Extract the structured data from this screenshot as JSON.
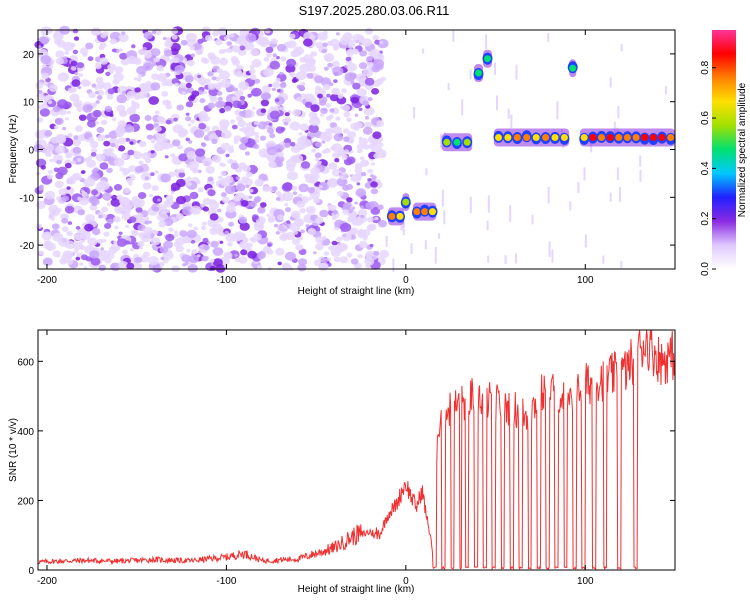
{
  "title": "S197.2025.280.03.06.R11",
  "chart_data": [
    {
      "type": "heatmap",
      "name": "spectrogram",
      "xlabel": "Height of straight line (km)",
      "ylabel": "Frequency (Hz)",
      "xlim": [
        -205,
        150
      ],
      "ylim": [
        -25,
        25
      ],
      "xticks": [
        -200,
        -100,
        0,
        100
      ],
      "xtick_labels": [
        "-200",
        "-100",
        "0",
        "100"
      ],
      "yticks": [
        -20,
        -10,
        0,
        10,
        20
      ],
      "ytick_labels": [
        "-20",
        "-10",
        "0",
        "10",
        "20"
      ],
      "colorbar": {
        "label": "Normalized spectral amplitude",
        "range": [
          0.0,
          0.95
        ],
        "ticks": [
          0.0,
          0.2,
          0.4,
          0.6,
          0.8
        ],
        "tick_labels": [
          "0.0",
          "0.2",
          "0.4",
          "0.6",
          "0.8"
        ],
        "colors": [
          "#ffffff",
          "#e0c8ff",
          "#8a2be2",
          "#2020ff",
          "#00c8ff",
          "#00e070",
          "#a0e000",
          "#ffe000",
          "#ff8000",
          "#ff0000",
          "#ff3399"
        ]
      },
      "noise_region_x": [
        -205,
        -12
      ],
      "features": [
        {
          "x0": -10,
          "x1": -1,
          "freq": -14,
          "amplitude": 0.85
        },
        {
          "x0": -2,
          "x1": 2,
          "freq": -11,
          "amplitude": 0.6
        },
        {
          "x0": 4,
          "x1": 17,
          "freq": -13,
          "amplitude": 0.8
        },
        {
          "x0": 20,
          "x1": 37,
          "freq": 1.5,
          "amplitude": 0.6
        },
        {
          "x0": 38,
          "x1": 43,
          "freq": 16,
          "amplitude": 0.6
        },
        {
          "x0": 43,
          "x1": 48,
          "freq": 19,
          "amplitude": 0.55
        },
        {
          "x0": 49,
          "x1": 91,
          "freq": 2.5,
          "amplitude": 0.75
        },
        {
          "x0": 91,
          "x1": 95,
          "freq": 17,
          "amplitude": 0.5
        },
        {
          "x0": 97,
          "x1": 150,
          "freq": 2.5,
          "amplitude": 0.85
        }
      ]
    },
    {
      "type": "line",
      "name": "snr",
      "xlabel": "Height of straight line (km)",
      "ylabel": "SNR (10 * v/v)",
      "xlim": [
        -205,
        150
      ],
      "ylim": [
        0,
        690
      ],
      "xticks": [
        -200,
        -100,
        0,
        100
      ],
      "xtick_labels": [
        "-200",
        "-100",
        "0",
        "100"
      ],
      "yticks": [
        0,
        200,
        400,
        600
      ],
      "ytick_labels": [
        "0",
        "200",
        "400",
        "600"
      ],
      "color": "#f03030",
      "series": [
        {
          "name": "SNR",
          "x": [
            -205,
            -180,
            -160,
            -140,
            -120,
            -100,
            -90,
            -80,
            -60,
            -40,
            -30,
            -20,
            -15,
            -10,
            -5,
            -2,
            0,
            3,
            6,
            9,
            12,
            14,
            15,
            16,
            18,
            20,
            23,
            27,
            32,
            38,
            44,
            50,
            56,
            62,
            68,
            74,
            80,
            86,
            92,
            98,
            104,
            110,
            116,
            122,
            126,
            130,
            134,
            138,
            142,
            146,
            150
          ],
          "y": [
            22,
            26,
            24,
            28,
            25,
            35,
            45,
            25,
            30,
            60,
            90,
            110,
            95,
            160,
            190,
            230,
            250,
            210,
            180,
            230,
            140,
            90,
            40,
            220,
            420,
            440,
            460,
            470,
            480,
            500,
            490,
            480,
            470,
            460,
            440,
            500,
            520,
            510,
            470,
            530,
            540,
            550,
            560,
            570,
            600,
            640,
            660,
            630,
            600,
            610,
            620
          ]
        }
      ],
      "gaps": [
        [
          15,
          17
        ],
        [
          20,
          22
        ],
        [
          25,
          27
        ],
        [
          30,
          31
        ],
        [
          33,
          35
        ],
        [
          38,
          40
        ],
        [
          43,
          45
        ],
        [
          48,
          50
        ],
        [
          53,
          55
        ],
        [
          58,
          60
        ],
        [
          63,
          65
        ],
        [
          68,
          70
        ],
        [
          73,
          75
        ],
        [
          78,
          80
        ],
        [
          83,
          85
        ],
        [
          88,
          90
        ],
        [
          93,
          95
        ],
        [
          98,
          100
        ],
        [
          104,
          106
        ],
        [
          110,
          112
        ],
        [
          118,
          120
        ],
        [
          127,
          129
        ]
      ]
    }
  ]
}
